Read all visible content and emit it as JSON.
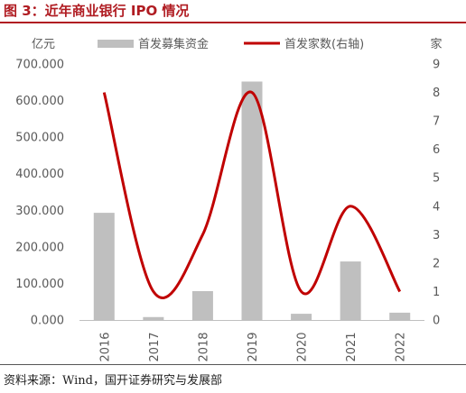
{
  "figure": {
    "title": "图 3：近年商业银行 IPO 情况",
    "source": "资料来源：Wind，国开证券研究与发展部"
  },
  "chart_data": {
    "type": "bar",
    "categories": [
      "2016",
      "2017",
      "2018",
      "2019",
      "2020",
      "2021",
      "2022"
    ],
    "left_axis_unit": "亿元",
    "right_axis_unit": "家",
    "left_ylim": [
      0,
      700
    ],
    "right_ylim": [
      0,
      9
    ],
    "left_ticks": [
      "0.000",
      "100.000",
      "200.000",
      "300.000",
      "400.000",
      "500.000",
      "600.000",
      "700.000"
    ],
    "right_ticks": [
      "0",
      "1",
      "2",
      "3",
      "4",
      "5",
      "6",
      "7",
      "8",
      "9"
    ],
    "series": [
      {
        "name": "首发募集资金",
        "type": "bar",
        "axis": "left",
        "color": "#bfbfbf",
        "values": [
          293,
          8,
          79,
          652,
          17,
          160,
          20
        ]
      },
      {
        "name": "首发家数(右轴)",
        "type": "line",
        "axis": "right",
        "color": "#c00000",
        "smooth": true,
        "values": [
          8,
          1,
          3,
          8,
          1,
          4,
          1
        ]
      }
    ],
    "legend_position": "top",
    "grid": false
  }
}
